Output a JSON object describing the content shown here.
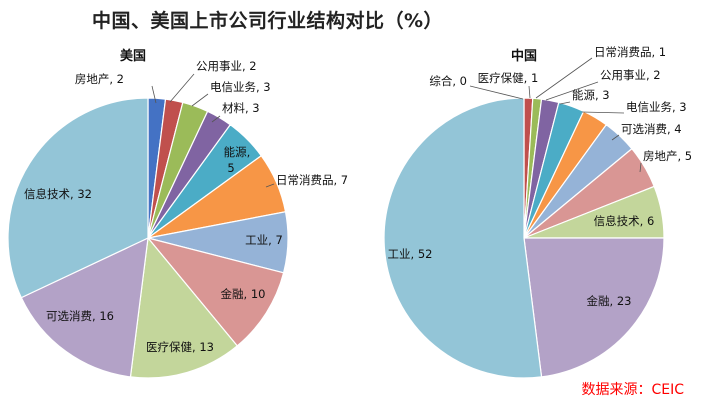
{
  "title": "中国、美国上市公司行业结构对比（%）",
  "source": "数据来源：CEIC",
  "chart_data": [
    {
      "type": "pie",
      "title": "美国",
      "slices": [
        {
          "label": "房地产",
          "value": 2,
          "text": "房地产, 2",
          "color": "#4472c4"
        },
        {
          "label": "公用事业",
          "value": 2,
          "text": "公用事业, 2",
          "color": "#c0504d"
        },
        {
          "label": "电信业务",
          "value": 3,
          "text": "电信业务, 3",
          "color": "#9bbb59"
        },
        {
          "label": "材料",
          "value": 3,
          "text": "材料, 3",
          "color": "#8064a2"
        },
        {
          "label": "能源",
          "value": 5,
          "text": "能源, 5",
          "color": "#4bacc6"
        },
        {
          "label": "日常消费品",
          "value": 7,
          "text": "日常消费品, 7",
          "color": "#f79646"
        },
        {
          "label": "工业",
          "value": 7,
          "text": "工业, 7",
          "color": "#95b3d7"
        },
        {
          "label": "金融",
          "value": 10,
          "text": "金融, 10",
          "color": "#d99694"
        },
        {
          "label": "医疗保健",
          "value": 13,
          "text": "医疗保健, 13",
          "color": "#c3d69b"
        },
        {
          "label": "可选消费",
          "value": 16,
          "text": "可选消费, 16",
          "color": "#b3a2c7"
        },
        {
          "label": "信息技术",
          "value": 32,
          "text": "信息技术, 32",
          "color": "#93c5d7"
        }
      ]
    },
    {
      "type": "pie",
      "title": "中国",
      "slices": [
        {
          "label": "综合",
          "value": 0,
          "text": "综合, 0",
          "color": "#4472c4"
        },
        {
          "label": "医疗保健",
          "value": 1,
          "text": "医疗保健, 1",
          "color": "#c0504d"
        },
        {
          "label": "日常消费品",
          "value": 1,
          "text": "日常消费品, 1",
          "color": "#9bbb59"
        },
        {
          "label": "公用事业",
          "value": 2,
          "text": "公用事业, 2",
          "color": "#8064a2"
        },
        {
          "label": "能源",
          "value": 3,
          "text": "能源, 3",
          "color": "#4bacc6"
        },
        {
          "label": "电信业务",
          "value": 3,
          "text": "电信业务, 3",
          "color": "#f79646"
        },
        {
          "label": "可选消费",
          "value": 4,
          "text": "可选消费, 4",
          "color": "#95b3d7"
        },
        {
          "label": "房地产",
          "value": 5,
          "text": "房地产, 5",
          "color": "#d99694"
        },
        {
          "label": "信息技术",
          "value": 6,
          "text": "信息技术, 6",
          "color": "#c3d69b"
        },
        {
          "label": "金融",
          "value": 23,
          "text": "金融, 23",
          "color": "#b3a2c7"
        },
        {
          "label": "工业",
          "value": 52,
          "text": "工业, 52",
          "color": "#93c5d7"
        }
      ]
    }
  ]
}
